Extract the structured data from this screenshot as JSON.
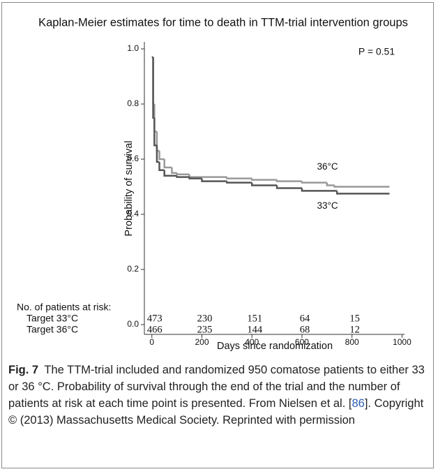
{
  "chart_data": {
    "type": "step",
    "title": "Kaplan-Meier estimates for time to death in TTM-trial intervention groups",
    "annotation": "P = 0.51",
    "x_label": "Days since randomization",
    "y_label": "Probability of survival",
    "xlim": [
      -30,
      1010
    ],
    "ylim": [
      0,
      1
    ],
    "xticks": [
      0,
      200,
      400,
      600,
      800,
      1000
    ],
    "yticks": [
      {
        "value": 0,
        "label": "0.0"
      },
      {
        "value": 0.2,
        "label": "0.2"
      },
      {
        "value": 0.4,
        "label": "0.4"
      },
      {
        "value": 0.6,
        "label": "0.6"
      },
      {
        "value": 0.8,
        "label": "0.8"
      },
      {
        "value": 1,
        "label": "1.0"
      }
    ],
    "series": [
      {
        "name": "36°C",
        "color": "#999999",
        "x": [
          0,
          5,
          10,
          20,
          30,
          50,
          80,
          100,
          150,
          300,
          400,
          500,
          600,
          700,
          730,
          950
        ],
        "values": [
          0.97,
          0.8,
          0.7,
          0.63,
          0.6,
          0.57,
          0.55,
          0.545,
          0.535,
          0.53,
          0.525,
          0.52,
          0.515,
          0.505,
          0.5,
          0.5
        ]
      },
      {
        "name": "33°C",
        "color": "#555555",
        "x": [
          0,
          5,
          10,
          20,
          30,
          50,
          100,
          150,
          200,
          300,
          400,
          500,
          600,
          740,
          950
        ],
        "values": [
          0.97,
          0.75,
          0.65,
          0.59,
          0.56,
          0.54,
          0.535,
          0.53,
          0.52,
          0.515,
          0.505,
          0.495,
          0.485,
          0.475,
          0.475
        ]
      }
    ],
    "risk_table": {
      "title": "No. of patients at risk:",
      "rows": [
        {
          "label": "Target 33°C",
          "values": [
            473,
            230,
            151,
            64,
            15
          ]
        },
        {
          "label": "Target 36°C",
          "values": [
            466,
            235,
            144,
            68,
            12
          ]
        }
      ]
    }
  },
  "caption": {
    "label": "Fig. 7",
    "text_before": "The TTM-trial included and randomized 950 comatose patients to either 33 or 36 °C. Probability of survival through the end of the trial and the number of patients at risk at each time point is presented. From Nielsen et al. [",
    "ref": "86",
    "text_after": "]. Copyright © (2013) Massachusetts Medical Society. Reprinted with permission"
  }
}
